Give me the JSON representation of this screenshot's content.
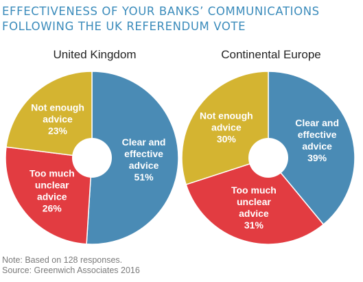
{
  "title": {
    "line1": "EFFECTIVENESS OF YOUR BANKS’ COMMUNICATIONS",
    "line2": "FOLLOWING THE UK REFERENDUM VOTE"
  },
  "colors": {
    "clear_and_effective": "#4a8bb5",
    "too_much_unclear": "#e23c41",
    "not_enough": "#d4b431",
    "title": "#3a8bbb"
  },
  "chart_data": [
    {
      "type": "pie",
      "title": "United Kingdom",
      "donut": true,
      "slices": [
        {
          "label_lines": [
            "Clear and",
            "effective",
            "advice"
          ],
          "value": 51,
          "value_label": "51%",
          "color": "#4a8bb5"
        },
        {
          "label_lines": [
            "Too much",
            "unclear",
            "advice"
          ],
          "value": 26,
          "value_label": "26%",
          "color": "#e23c41"
        },
        {
          "label_lines": [
            "Not enough",
            "advice"
          ],
          "value": 23,
          "value_label": "23%",
          "color": "#d4b431"
        }
      ]
    },
    {
      "type": "pie",
      "title": "Continental Europe",
      "donut": true,
      "slices": [
        {
          "label_lines": [
            "Clear and",
            "effective",
            "advice"
          ],
          "value": 39,
          "value_label": "39%",
          "color": "#4a8bb5"
        },
        {
          "label_lines": [
            "Too much",
            "unclear",
            "advice"
          ],
          "value": 31,
          "value_label": "31%",
          "color": "#e23c41"
        },
        {
          "label_lines": [
            "Not enough",
            "advice"
          ],
          "value": 30,
          "value_label": "30%",
          "color": "#d4b431"
        }
      ]
    }
  ],
  "footer": {
    "note": "Note: Based on 128 responses.",
    "source": "Source: Greenwich Associates 2016"
  }
}
